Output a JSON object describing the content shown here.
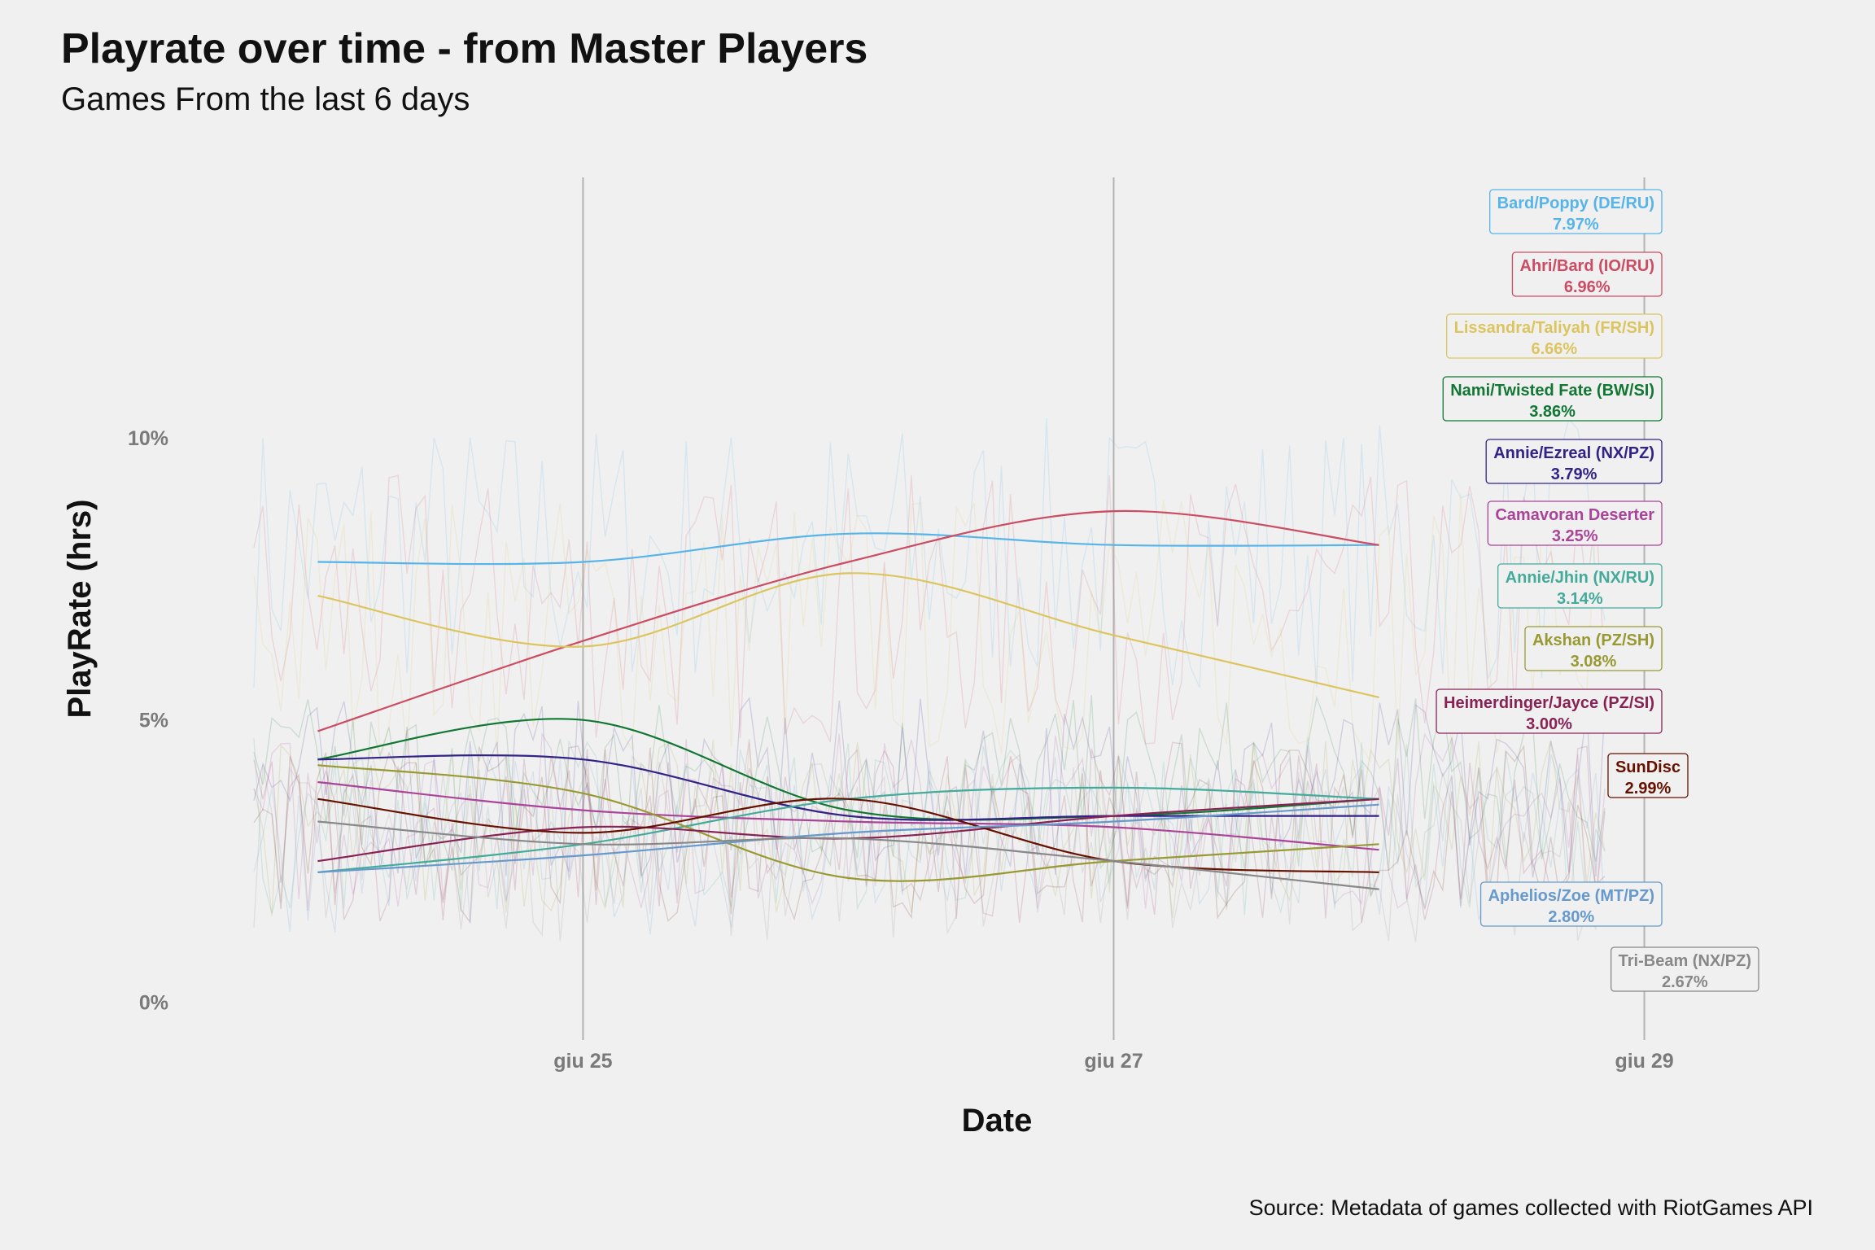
{
  "title": "Playrate over time - from Master Players",
  "subtitle": "Games From the last 6 days",
  "source": "Source: Metadata of games collected with RiotGames API",
  "chart_data": {
    "type": "line",
    "xlabel": "Date",
    "ylabel": "PlayRate (hrs)",
    "x_ticks": [
      {
        "date": "2022-06-25",
        "label": "giu 25"
      },
      {
        "date": "2022-06-27",
        "label": "giu 27"
      },
      {
        "date": "2022-06-29",
        "label": "giu 29"
      }
    ],
    "y_ticks": [
      {
        "value": 0,
        "label": "0%"
      },
      {
        "value": 5,
        "label": "5%"
      },
      {
        "value": 10,
        "label": "10%"
      }
    ],
    "xlim": [
      "2022-06-23 17:12",
      "2022-06-29 11:00"
    ],
    "ylim": [
      -0.7,
      14.8
    ],
    "smooth_x": [
      "2022-06-24",
      "2022-06-25",
      "2022-06-26",
      "2022-06-27",
      "2022-06-28"
    ],
    "grid": "vertical major lines only",
    "series": [
      {
        "name": "Bard/Poppy (DE/RU)",
        "pct": "7.97%",
        "color": "#56b4e9",
        "smooth": [
          7.8,
          7.8,
          8.3,
          8.1,
          8.1
        ]
      },
      {
        "name": "Ahri/Bard (IO/RU)",
        "pct": "6.96%",
        "color": "#cc4c63",
        "smooth": [
          4.8,
          6.4,
          7.8,
          8.7,
          8.1
        ]
      },
      {
        "name": "Lissandra/Taliyah (FR/SH)",
        "pct": "6.66%",
        "color": "#dcc55e",
        "smooth": [
          7.2,
          6.3,
          7.6,
          6.5,
          5.4
        ]
      },
      {
        "name": "Nami/Twisted Fate (BW/SI)",
        "pct": "3.86%",
        "color": "#117733",
        "smooth": [
          4.3,
          5.0,
          3.4,
          3.3,
          3.6
        ]
      },
      {
        "name": "Annie/Ezreal (NX/PZ)",
        "pct": "3.79%",
        "color": "#332288",
        "smooth": [
          4.3,
          4.3,
          3.3,
          3.3,
          3.3
        ]
      },
      {
        "name": "Camavoran Deserter",
        "pct": "3.25%",
        "color": "#aa4499",
        "smooth": [
          3.9,
          3.4,
          3.2,
          3.1,
          2.7
        ]
      },
      {
        "name": "Annie/Jhin (NX/RU)",
        "pct": "3.14%",
        "color": "#44aa99",
        "smooth": [
          2.3,
          2.8,
          3.6,
          3.8,
          3.6
        ]
      },
      {
        "name": "Akshan (PZ/SH)",
        "pct": "3.08%",
        "color": "#999933",
        "smooth": [
          4.2,
          3.7,
          2.2,
          2.5,
          2.8
        ]
      },
      {
        "name": "Heimerdinger/Jayce (PZ/SI)",
        "pct": "3.00%",
        "color": "#882255",
        "smooth": [
          2.5,
          3.1,
          2.9,
          3.3,
          3.6
        ]
      },
      {
        "name": "SunDisc",
        "pct": "2.99%",
        "color": "#661100",
        "smooth": [
          3.6,
          3.0,
          3.6,
          2.5,
          2.3
        ]
      },
      {
        "name": "Aphelios/Zoe (MT/PZ)",
        "pct": "2.80%",
        "color": "#6699cc",
        "smooth": [
          2.3,
          2.6,
          3.0,
          3.2,
          3.5
        ]
      },
      {
        "name": "Tri-Beam (NX/PZ)",
        "pct": "2.67%",
        "color": "#888888",
        "smooth": [
          3.2,
          2.8,
          2.9,
          2.5,
          2.0
        ]
      }
    ]
  }
}
